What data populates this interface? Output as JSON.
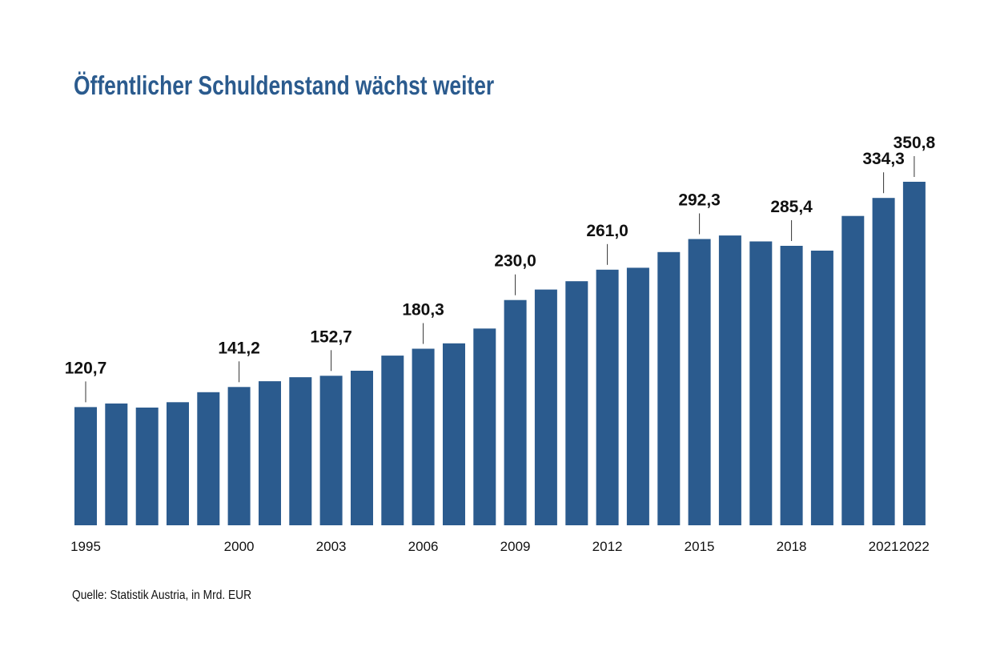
{
  "chart_data": {
    "type": "bar",
    "title": "Öffentlicher Schuldenstand wächst weiter",
    "source": "Quelle: Statistik Austria, in Mrd. EUR",
    "xlabel": "",
    "ylabel": "",
    "ylim": [
      0,
      350.8
    ],
    "color": "#2b5b8e",
    "categories": [
      "1995",
      "1996",
      "1997",
      "1998",
      "1999",
      "2000",
      "2001",
      "2002",
      "2003",
      "2004",
      "2005",
      "2006",
      "2007",
      "2008",
      "2009",
      "2010",
      "2011",
      "2012",
      "2013",
      "2014",
      "2015",
      "2016",
      "2017",
      "2018",
      "2019",
      "2020",
      "2021",
      "2022"
    ],
    "values": [
      120.7,
      124.4,
      120.2,
      125.7,
      135.9,
      141.2,
      147.1,
      151.2,
      152.7,
      157.8,
      173.3,
      180.3,
      185.8,
      200.9,
      230.0,
      240.7,
      249.2,
      261.0,
      263.0,
      279.0,
      292.3,
      295.9,
      289.9,
      285.4,
      280.5,
      315.9,
      334.3,
      350.8
    ],
    "tick_labels": {
      "1995": "1995",
      "2000": "2000",
      "2003": "2003",
      "2006": "2006",
      "2009": "2009",
      "2012": "2012",
      "2015": "2015",
      "2018": "2018",
      "2021": "2021",
      "2022": "2022"
    },
    "data_labels": {
      "1995": "120,7",
      "2000": "141,2",
      "2003": "152,7",
      "2006": "180,3",
      "2009": "230,0",
      "2012": "261,0",
      "2015": "292,3",
      "2018": "285,4",
      "2021": "334,3",
      "2022": "350,8"
    }
  }
}
